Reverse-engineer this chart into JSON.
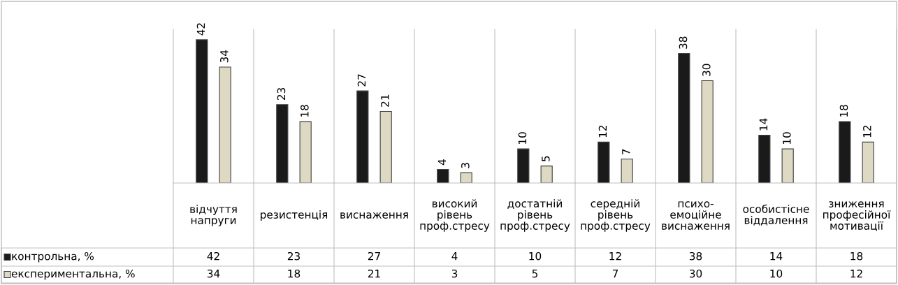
{
  "chart_data": {
    "type": "bar",
    "categories": [
      "відчуття\nнапруги",
      "резистенція",
      "виснаження",
      "високий\nрівень\nпроф.стресу",
      "достатній\nрівень\nпроф.стресу",
      "середній\nрівень\nпроф.стресу",
      "психо-\nемоційне\nвиснаження",
      "особистісне\nвіддалення",
      "зниження\nпрофесійної\nмотивації"
    ],
    "series": [
      {
        "name": "контрольна, %",
        "color": "#1a1a1a",
        "values": [
          42,
          23,
          27,
          4,
          10,
          12,
          38,
          14,
          18
        ],
        "value_labels": [
          "42",
          "23",
          "27",
          "4",
          "10",
          "12",
          "38",
          "14",
          "18"
        ]
      },
      {
        "name": "експериментальна, %",
        "color": "#ddd9c3",
        "values": [
          34,
          18,
          21,
          3,
          5,
          7,
          30,
          10,
          12
        ],
        "value_labels": [
          "34",
          "18",
          "21",
          "3",
          "5",
          "7",
          "30",
          "10",
          "12"
        ]
      }
    ],
    "annotations": [
      "42",
      "23",
      "27",
      "4",
      "10",
      "12",
      "38",
      "14",
      "18",
      "34",
      "18",
      "21",
      "3",
      "5",
      "7",
      "30",
      "10",
      "12"
    ],
    "data_labels": true,
    "legend": "bottom left",
    "grid": "x"
  }
}
